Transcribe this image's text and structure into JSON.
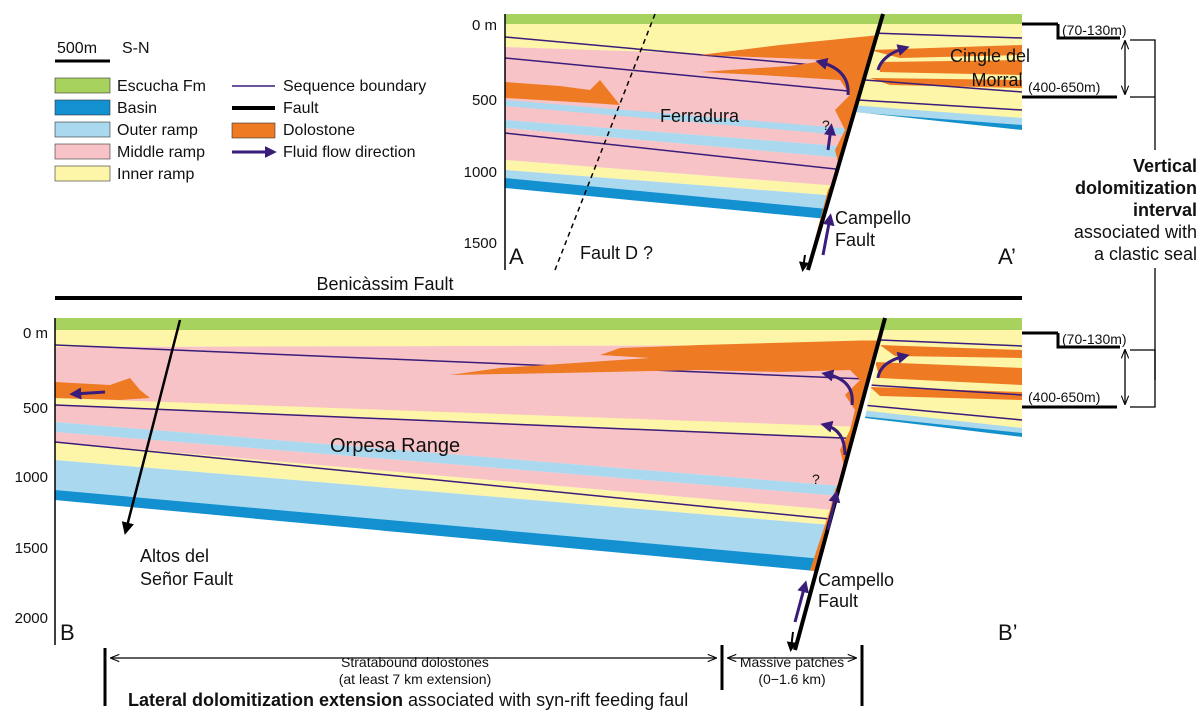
{
  "scale_bar": {
    "length": "500m",
    "orientation": "S-N"
  },
  "legend": {
    "units": [
      "Escucha Fm",
      "Basin",
      "Outer ramp",
      "Middle ramp",
      "Inner ramp"
    ],
    "symbols": [
      "Sequence boundary",
      "Fault",
      "Dolostone",
      "Fluid flow direction"
    ]
  },
  "section_a": {
    "depth_labels": [
      "0 m",
      "500",
      "1000",
      "1500"
    ],
    "ferradura": "Ferradura",
    "cingle": [
      "Cingle del",
      "Morral"
    ],
    "fault_d": "Fault D ?",
    "campello": [
      "Campello",
      "Fault"
    ],
    "query": "?",
    "start": "A",
    "end": "A’",
    "intervals": [
      "(70-130m)",
      "(400-650m)"
    ]
  },
  "benicassim": "Benicàssim Fault",
  "vertical_note": {
    "bold": [
      "Vertical",
      "dolomitization",
      "interval"
    ],
    "normal": [
      "associated with",
      "a clastic seal"
    ]
  },
  "section_b": {
    "depth_labels": [
      "0 m",
      "500",
      "1000",
      "1500",
      "2000"
    ],
    "orpesa": "Orpesa Range",
    "altos": [
      "Altos del",
      "Señor Fault"
    ],
    "campello": [
      "Campello",
      "Fault"
    ],
    "query": "?",
    "start": "B",
    "end": "B’",
    "intervals": [
      "(70-130m)",
      "(400-650m)"
    ]
  },
  "lateral": {
    "stratabound": [
      "Stratabound dolostones",
      "(at least 7 km extension)"
    ],
    "massive": [
      "Massive patches",
      "(0−1.6 km)"
    ],
    "title_bold": "Lateral dolomitization extension",
    "title_rest": "associated with syn-rift feeding faul"
  }
}
